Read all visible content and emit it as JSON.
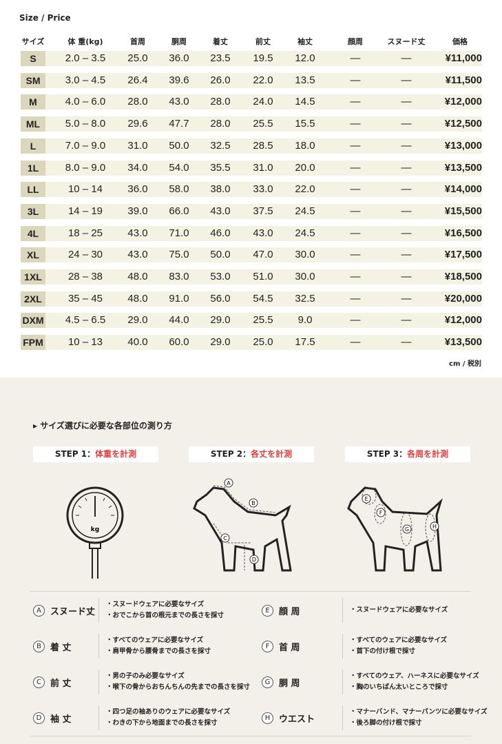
{
  "title": "Size / Price",
  "headers": [
    "サイズ",
    "体 重(kg)",
    "首周",
    "胴周",
    "着丈",
    "前丈",
    "袖丈",
    "顔周",
    "スヌード丈",
    "価格"
  ],
  "rows": [
    [
      "S",
      "2.0 – 3.5",
      "25.0",
      "36.0",
      "23.5",
      "19.5",
      "12.0",
      "—",
      "—",
      "¥11,000"
    ],
    [
      "SM",
      "3.0 – 4.5",
      "26.4",
      "39.6",
      "26.0",
      "22.0",
      "13.5",
      "—",
      "—",
      "¥11,500"
    ],
    [
      "M",
      "4.0 – 6.0",
      "28.0",
      "43.0",
      "28.0",
      "24.0",
      "14.5",
      "—",
      "—",
      "¥12,000"
    ],
    [
      "ML",
      "5.0 – 8.0",
      "29.6",
      "47.7",
      "28.0",
      "25.5",
      "15.5",
      "—",
      "—",
      "¥12,500"
    ],
    [
      "L",
      "7.0 – 9.0",
      "31.0",
      "50.0",
      "32.5",
      "28.5",
      "18.0",
      "—",
      "—",
      "¥13,000"
    ],
    [
      "1L",
      "8.0 – 9.0",
      "34.0",
      "54.0",
      "35.5",
      "31.0",
      "20.0",
      "—",
      "—",
      "¥13,500"
    ],
    [
      "LL",
      "10 – 14",
      "36.0",
      "58.0",
      "38.0",
      "33.0",
      "22.0",
      "—",
      "—",
      "¥14,000"
    ],
    [
      "3L",
      "14 – 19",
      "39.0",
      "66.0",
      "43.0",
      "37.5",
      "24.5",
      "—",
      "—",
      "¥15,500"
    ],
    [
      "4L",
      "18 – 25",
      "43.0",
      "71.0",
      "46.0",
      "43.0",
      "24.5",
      "—",
      "—",
      "¥16,500"
    ],
    [
      "XL",
      "24 – 30",
      "43.0",
      "75.0",
      "50.0",
      "47.0",
      "30.0",
      "—",
      "—",
      "¥17,500"
    ],
    [
      "1XL",
      "28 – 38",
      "48.0",
      "83.0",
      "53.0",
      "51.0",
      "30.0",
      "—",
      "—",
      "¥18,500"
    ],
    [
      "2XL",
      "35 – 45",
      "48.0",
      "91.0",
      "56.0",
      "54.5",
      "32.5",
      "—",
      "—",
      "¥20,000"
    ],
    [
      "DXM",
      "4.5 – 6.5",
      "29.0",
      "44.0",
      "29.0",
      "25.5",
      "9.0",
      "—",
      "—",
      "¥12,000"
    ],
    [
      "FPM",
      "10 – 13",
      "40.0",
      "60.0",
      "29.0",
      "25.0",
      "17.5",
      "—",
      "—",
      "¥13,500"
    ]
  ],
  "unit": "cm / 税別",
  "howto": "▸ サイズ選びに必要な各部位の測り方",
  "steps": [
    {
      "label": "STEP 1：",
      "red": "体重を計測"
    },
    {
      "label": "STEP 2：",
      "red": "各丈を計測"
    },
    {
      "label": "STEP 3：",
      "red": "各周を計測"
    }
  ],
  "scale_label": "kg",
  "markers": [
    "A",
    "B",
    "C",
    "D",
    "E",
    "F",
    "G",
    "H"
  ],
  "legend": [
    {
      "mark": "A",
      "name": "スヌード丈",
      "lines": [
        "・スヌードウェアに必要なサイズ",
        "・おでこから首の根元までの長さを採寸"
      ]
    },
    {
      "mark": "E",
      "name": "顔 周",
      "lines": [
        "・スヌードウェアに必要なサイズ"
      ]
    },
    {
      "mark": "B",
      "name": "着 丈",
      "lines": [
        "・すべてのウェアに必要なサイズ",
        "・肩甲骨から腰骨までの長さを採寸"
      ]
    },
    {
      "mark": "F",
      "name": "首 周",
      "lines": [
        "・すべてのウェアに必要なサイズ",
        "・首下の付け根で採寸"
      ]
    },
    {
      "mark": "C",
      "name": "前 丈",
      "lines": [
        "・男の子のみ必要なサイズ",
        "・喉下の骨からおちんちんの先までの長さを採寸"
      ]
    },
    {
      "mark": "G",
      "name": "胴 周",
      "lines": [
        "・すべてのウェア、ハーネスに必要なサイズ",
        "・胸のいちばん太いところで採寸"
      ]
    },
    {
      "mark": "D",
      "name": "袖 丈",
      "lines": [
        "・四つ足の袖ありのウェアに必要なサイズ",
        "・わきの下から地面までの長さを採寸"
      ]
    },
    {
      "mark": "H",
      "name": "ウエスト",
      "lines": [
        "・マナーバンド、マナーパンツに必要なサイズ",
        "・後ろ脚の付け根で採寸"
      ]
    }
  ],
  "colors": {
    "row_band": "#f3f2e3",
    "size_cell": "#dcd6bd",
    "section_bg": "#f3f0ea",
    "accent_red": "#e2403f"
  }
}
